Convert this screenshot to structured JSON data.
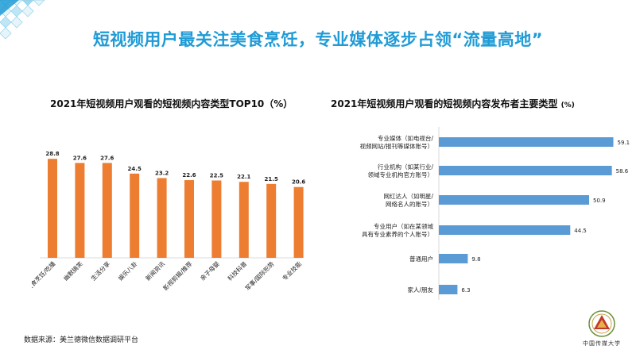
{
  "slide": {
    "title": "短视频用户最关注美食烹饪，专业媒体逐步占领“流量高地”",
    "source": "数据来源：美兰德微信数据调研平台",
    "logo_text": "中国传媒大学"
  },
  "left_chart": {
    "title": "2021年短视频用户观看的短视频内容类型TOP10（%）"
  },
  "right_chart": {
    "title": "2021年短视频用户观看的短视频内容发布者主要类型",
    "title_unit": "(%)"
  },
  "colors": {
    "title": "#1f9bd6",
    "bar_orange": "#ed7d31",
    "bar_blue": "#5b9bd5"
  },
  "chart_data": [
    {
      "type": "bar",
      "orientation": "vertical",
      "title": "2021年短视频用户观看的短视频内容类型TOP10（%）",
      "categories": [
        "美食烹饪/吃播",
        "幽默搞笑",
        "生活分享",
        "娱乐八卦",
        "新闻资讯",
        "影视剪辑/推荐",
        "亲子母婴",
        "科技科普",
        "军事/国际形势",
        "专业技能"
      ],
      "values": [
        28.8,
        27.6,
        27.6,
        24.5,
        23.2,
        22.6,
        22.5,
        22.1,
        21.5,
        20.6
      ],
      "data_labels": [
        "28.8",
        "27.6",
        "27.6",
        "24.5",
        "23.2",
        "22.6",
        "22.5",
        "22.1",
        "21.5",
        "20.6"
      ],
      "ylim": [
        0,
        30
      ],
      "grid": false,
      "color": "#ed7d31"
    },
    {
      "type": "bar",
      "orientation": "horizontal",
      "title": "2021年短视频用户观看的短视频内容发布者主要类型 (%)",
      "categories": [
        [
          "专业媒体（如电视台/",
          "视频网站/报刊等媒体账号）"
        ],
        [
          "行业机构（如某行业/",
          "领域专业机构官方账号）"
        ],
        [
          "网红达人（如明星/",
          "网络名人的账号）"
        ],
        [
          "专业用户（如在某领域",
          "具有专业素养的个人账号）"
        ],
        [
          "普通用户"
        ],
        [
          "家人/朋友"
        ]
      ],
      "values": [
        59.1,
        58.6,
        50.9,
        44.5,
        9.8,
        6.3
      ],
      "data_labels": [
        "59.1",
        "58.6",
        "50.9",
        "44.5",
        "9.8",
        "6.3"
      ],
      "xlim": [
        0,
        70
      ],
      "grid": false,
      "color": "#5b9bd5"
    }
  ]
}
